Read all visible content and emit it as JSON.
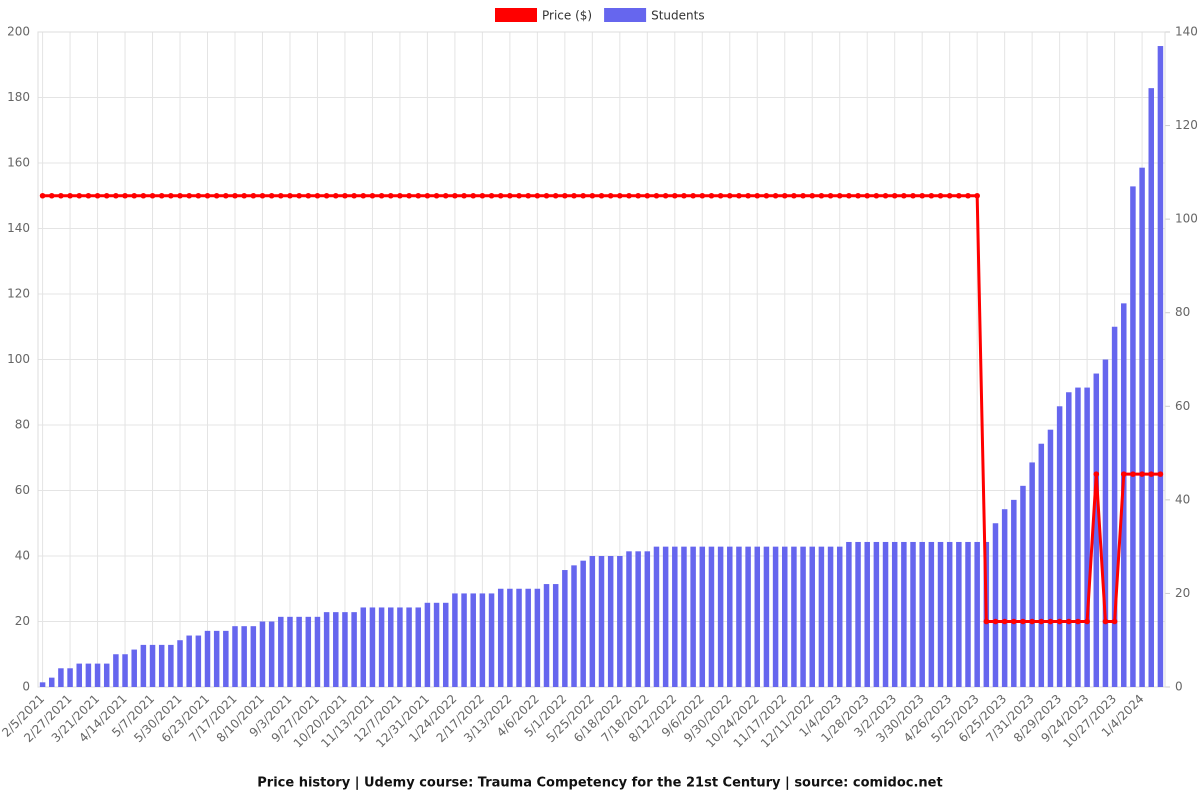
{
  "chart_data": {
    "type": "combo",
    "title": "Price history | Udemy course: Trauma Competency for the 21st Century | source: comidoc.net",
    "categories": [
      "2/5/2021",
      null,
      null,
      "2/27/2021",
      null,
      null,
      "3/21/2021",
      null,
      null,
      "4/14/2021",
      null,
      null,
      "5/7/2021",
      null,
      null,
      "5/30/2021",
      null,
      null,
      "6/23/2021",
      null,
      null,
      "7/17/2021",
      null,
      null,
      "8/10/2021",
      null,
      null,
      "9/3/2021",
      null,
      null,
      "9/27/2021",
      null,
      null,
      "10/20/2021",
      null,
      null,
      "11/13/2021",
      null,
      null,
      "12/7/2021",
      null,
      null,
      "12/31/2021",
      null,
      null,
      "1/24/2022",
      null,
      null,
      "2/17/2022",
      null,
      null,
      "3/13/2022",
      null,
      null,
      "4/6/2022",
      null,
      null,
      "5/1/2022",
      null,
      null,
      "5/25/2022",
      null,
      null,
      "6/18/2022",
      null,
      null,
      "7/18/2022",
      null,
      null,
      "8/12/2022",
      null,
      null,
      "9/6/2022",
      null,
      null,
      "9/30/2022",
      null,
      null,
      "10/24/2022",
      null,
      null,
      "11/17/2022",
      null,
      null,
      "12/11/2022",
      null,
      null,
      "1/4/2023",
      null,
      null,
      "1/28/2023",
      null,
      null,
      "3/2/2023",
      null,
      null,
      "3/30/2023",
      null,
      null,
      "4/26/2023",
      null,
      null,
      "5/25/2023",
      null,
      null,
      "6/25/2023",
      null,
      null,
      "7/31/2023",
      null,
      null,
      "8/29/2023",
      null,
      null,
      "9/24/2023",
      null,
      null,
      "10/27/2023",
      null,
      null,
      "1/4/2024",
      null,
      null
    ],
    "series": [
      {
        "name": "Price ($)",
        "type": "line",
        "axis": "y",
        "color": "#ff0000",
        "values": [
          150,
          150,
          150,
          150,
          150,
          150,
          150,
          150,
          150,
          150,
          150,
          150,
          150,
          150,
          150,
          150,
          150,
          150,
          150,
          150,
          150,
          150,
          150,
          150,
          150,
          150,
          150,
          150,
          150,
          150,
          150,
          150,
          150,
          150,
          150,
          150,
          150,
          150,
          150,
          150,
          150,
          150,
          150,
          150,
          150,
          150,
          150,
          150,
          150,
          150,
          150,
          150,
          150,
          150,
          150,
          150,
          150,
          150,
          150,
          150,
          150,
          150,
          150,
          150,
          150,
          150,
          150,
          150,
          150,
          150,
          150,
          150,
          150,
          150,
          150,
          150,
          150,
          150,
          150,
          150,
          150,
          150,
          150,
          150,
          150,
          150,
          150,
          150,
          150,
          150,
          150,
          150,
          150,
          150,
          150,
          150,
          150,
          150,
          150,
          150,
          150,
          150,
          150,
          20,
          20,
          20,
          20,
          20,
          20,
          20,
          20,
          20,
          20,
          20,
          20,
          65,
          20,
          20,
          65,
          65,
          65,
          65,
          65
        ]
      },
      {
        "name": "Students",
        "type": "bar",
        "axis": "y2",
        "color": "#6666ee",
        "values": [
          1,
          2,
          4,
          4,
          5,
          5,
          5,
          5,
          7,
          7,
          8,
          9,
          9,
          9,
          9,
          10,
          11,
          11,
          12,
          12,
          12,
          13,
          13,
          13,
          14,
          14,
          15,
          15,
          15,
          15,
          15,
          16,
          16,
          16,
          16,
          17,
          17,
          17,
          17,
          17,
          17,
          17,
          18,
          18,
          18,
          20,
          20,
          20,
          20,
          20,
          21,
          21,
          21,
          21,
          21,
          22,
          22,
          25,
          26,
          27,
          28,
          28,
          28,
          28,
          29,
          29,
          29,
          30,
          30,
          30,
          30,
          30,
          30,
          30,
          30,
          30,
          30,
          30,
          30,
          30,
          30,
          30,
          30,
          30,
          30,
          30,
          30,
          30,
          31,
          31,
          31,
          31,
          31,
          31,
          31,
          31,
          31,
          31,
          31,
          31,
          31,
          31,
          31,
          31,
          35,
          38,
          40,
          43,
          48,
          52,
          55,
          60,
          63,
          64,
          64,
          67,
          70,
          77,
          82,
          107,
          111,
          128,
          137
        ]
      }
    ],
    "ylim": [
      0,
      200
    ],
    "yticks": [
      0,
      20,
      40,
      60,
      80,
      100,
      120,
      140,
      160,
      180,
      200
    ],
    "y2lim": [
      0,
      140
    ],
    "y2ticks": [
      0,
      20,
      40,
      60,
      80,
      100,
      120,
      140
    ],
    "grid": true,
    "legend": "top"
  }
}
